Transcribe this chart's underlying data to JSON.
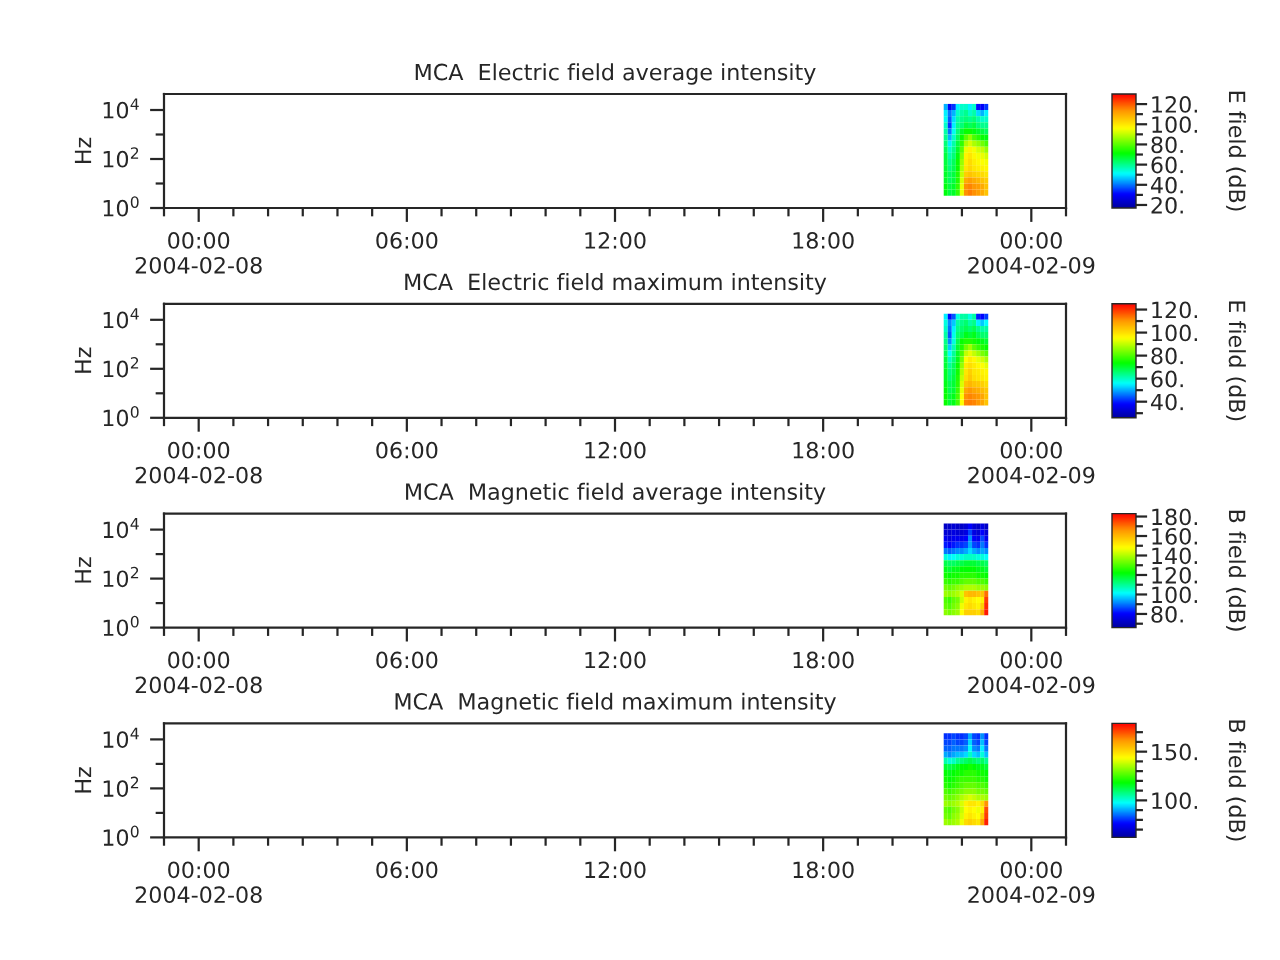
{
  "chart_data": [
    {
      "type": "heatmap",
      "title": "MCA  Electric field average intensity",
      "ylabel": "Hz",
      "clabel": "E field (dB)",
      "log": "y",
      "x": [
        "2004-02-08T21:32",
        "2004-02-08T21:39",
        "2004-02-08T21:46",
        "2004-02-08T21:53",
        "2004-02-08T22:00",
        "2004-02-08T22:07",
        "2004-02-08T22:14",
        "2004-02-08T22:21",
        "2004-02-08T22:28",
        "2004-02-08T22:35",
        "2004-02-08T22:42"
      ],
      "y": [
        13300,
        7500,
        4220,
        2370,
        1330,
        750,
        422,
        237,
        133,
        75,
        42.2,
        23.7,
        13.3,
        7.5,
        4.22
      ],
      "cells": [
        [
          45,
          30,
          35,
          50,
          55,
          55,
          50,
          55,
          32,
          30,
          35
        ],
        [
          50,
          40,
          45,
          55,
          58,
          60,
          55,
          58,
          48,
          45,
          50
        ],
        [
          52,
          38,
          48,
          58,
          60,
          62,
          60,
          62,
          58,
          55,
          55
        ],
        [
          55,
          35,
          50,
          60,
          62,
          66,
          64,
          66,
          62,
          60,
          60
        ],
        [
          58,
          40,
          52,
          62,
          68,
          72,
          72,
          70,
          68,
          66,
          64
        ],
        [
          60,
          45,
          55,
          64,
          72,
          80,
          85,
          78,
          75,
          72,
          70
        ],
        [
          62,
          50,
          58,
          66,
          76,
          88,
          92,
          88,
          85,
          82,
          78
        ],
        [
          64,
          55,
          60,
          68,
          80,
          94,
          98,
          95,
          92,
          90,
          86
        ],
        [
          66,
          58,
          62,
          70,
          84,
          98,
          100,
          97,
          95,
          94,
          92
        ],
        [
          66,
          60,
          64,
          72,
          86,
          99,
          102,
          99,
          97,
          96,
          95
        ],
        [
          67,
          62,
          65,
          72,
          88,
          100,
          103,
          100,
          99,
          98,
          97
        ],
        [
          68,
          64,
          66,
          74,
          90,
          104,
          106,
          104,
          103,
          102,
          100
        ],
        [
          68,
          64,
          66,
          74,
          92,
          110,
          112,
          110,
          108,
          106,
          104
        ],
        [
          70,
          66,
          68,
          76,
          94,
          114,
          115,
          113,
          112,
          110,
          106
        ],
        [
          70,
          66,
          68,
          76,
          94,
          114,
          116,
          114,
          112,
          110,
          106
        ]
      ],
      "clim": [
        17,
        130
      ],
      "cticks": [
        {
          "value": 20,
          "label": "20."
        },
        {
          "value": 30,
          "label": null
        },
        {
          "value": 40,
          "label": "40."
        },
        {
          "value": 50,
          "label": null
        },
        {
          "value": 60,
          "label": "60."
        },
        {
          "value": 70,
          "label": null
        },
        {
          "value": 80,
          "label": "80."
        },
        {
          "value": 90,
          "label": null
        },
        {
          "value": 100,
          "label": "100."
        },
        {
          "value": 110,
          "label": null
        },
        {
          "value": 120,
          "label": "120."
        }
      ],
      "xlim": [
        "2004-02-07T23:00",
        "2004-02-09T01:00"
      ],
      "xticks": [
        {
          "value": "2004-02-07T23:00",
          "label": null
        },
        {
          "value": "2004-02-08T00:00",
          "label": "00:00\n2004-02-08"
        },
        {
          "value": "2004-02-08T01:00",
          "label": null
        },
        {
          "value": "2004-02-08T02:00",
          "label": null
        },
        {
          "value": "2004-02-08T03:00",
          "label": null
        },
        {
          "value": "2004-02-08T04:00",
          "label": null
        },
        {
          "value": "2004-02-08T05:00",
          "label": null
        },
        {
          "value": "2004-02-08T06:00",
          "label": "06:00"
        },
        {
          "value": "2004-02-08T07:00",
          "label": null
        },
        {
          "value": "2004-02-08T08:00",
          "label": null
        },
        {
          "value": "2004-02-08T09:00",
          "label": null
        },
        {
          "value": "2004-02-08T10:00",
          "label": null
        },
        {
          "value": "2004-02-08T11:00",
          "label": null
        },
        {
          "value": "2004-02-08T12:00",
          "label": "12:00"
        },
        {
          "value": "2004-02-08T13:00",
          "label": null
        },
        {
          "value": "2004-02-08T14:00",
          "label": null
        },
        {
          "value": "2004-02-08T15:00",
          "label": null
        },
        {
          "value": "2004-02-08T16:00",
          "label": null
        },
        {
          "value": "2004-02-08T17:00",
          "label": null
        },
        {
          "value": "2004-02-08T18:00",
          "label": "18:00"
        },
        {
          "value": "2004-02-08T19:00",
          "label": null
        },
        {
          "value": "2004-02-08T20:00",
          "label": null
        },
        {
          "value": "2004-02-08T21:00",
          "label": null
        },
        {
          "value": "2004-02-08T22:00",
          "label": null
        },
        {
          "value": "2004-02-08T23:00",
          "label": null
        },
        {
          "value": "2004-02-09T00:00",
          "label": "00:00\n2004-02-09"
        },
        {
          "value": "2004-02-09T01:00",
          "label": null
        }
      ],
      "ylim": [
        1,
        45000
      ],
      "yticks": [
        {
          "value": 1,
          "label": "10$^{0}$"
        },
        {
          "value": 10,
          "label": null
        },
        {
          "value": 100,
          "label": "10$^{2}$"
        },
        {
          "value": 1000,
          "label": null
        },
        {
          "value": 10000,
          "label": "10$^{4}$"
        }
      ]
    },
    {
      "type": "heatmap",
      "title": "MCA  Electric field maximum intensity",
      "ylabel": "Hz",
      "clabel": "E field (dB)",
      "log": "y",
      "x": [
        "2004-02-08T21:32",
        "2004-02-08T21:39",
        "2004-02-08T21:46",
        "2004-02-08T21:53",
        "2004-02-08T22:00",
        "2004-02-08T22:07",
        "2004-02-08T22:14",
        "2004-02-08T22:21",
        "2004-02-08T22:28",
        "2004-02-08T22:35",
        "2004-02-08T22:42"
      ],
      "y": [
        13300,
        7500,
        4220,
        2370,
        1330,
        750,
        422,
        237,
        133,
        75,
        42.2,
        23.7,
        13.3,
        7.5,
        4.22
      ],
      "cells": [
        [
          55,
          38,
          44,
          58,
          62,
          62,
          58,
          62,
          40,
          38,
          42
        ],
        [
          58,
          48,
          52,
          62,
          64,
          66,
          62,
          64,
          55,
          52,
          56
        ],
        [
          60,
          46,
          55,
          64,
          66,
          68,
          66,
          68,
          64,
          62,
          62
        ],
        [
          62,
          44,
          57,
          66,
          68,
          72,
          70,
          72,
          68,
          66,
          66
        ],
        [
          64,
          48,
          58,
          68,
          74,
          76,
          76,
          75,
          73,
          72,
          70
        ],
        [
          66,
          52,
          61,
          70,
          76,
          83,
          87,
          81,
          78,
          76,
          74
        ],
        [
          67,
          56,
          63,
          71,
          80,
          90,
          93,
          90,
          87,
          84,
          81
        ],
        [
          69,
          60,
          65,
          72,
          83,
          95,
          98,
          96,
          93,
          91,
          88
        ],
        [
          70,
          63,
          67,
          74,
          86,
          98,
          100,
          98,
          96,
          95,
          93
        ],
        [
          71,
          65,
          68,
          75,
          88,
          99,
          102,
          99,
          98,
          97,
          96
        ],
        [
          71,
          66,
          69,
          76,
          90,
          100,
          103,
          100,
          99,
          98,
          97
        ],
        [
          72,
          68,
          70,
          77,
          92,
          104,
          106,
          104,
          103,
          102,
          100
        ],
        [
          73,
          68,
          70,
          78,
          93,
          108,
          110,
          108,
          107,
          105,
          103
        ],
        [
          74,
          70,
          72,
          79,
          95,
          111,
          112,
          111,
          110,
          108,
          104
        ],
        [
          74,
          70,
          72,
          79,
          95,
          112,
          113,
          112,
          110,
          108,
          104
        ]
      ],
      "clim": [
        26,
        125
      ],
      "cticks": [
        {
          "value": 30,
          "label": null
        },
        {
          "value": 40,
          "label": "40."
        },
        {
          "value": 50,
          "label": null
        },
        {
          "value": 60,
          "label": "60."
        },
        {
          "value": 70,
          "label": null
        },
        {
          "value": 80,
          "label": "80."
        },
        {
          "value": 90,
          "label": null
        },
        {
          "value": 100,
          "label": "100."
        },
        {
          "value": 110,
          "label": null
        },
        {
          "value": 120,
          "label": "120."
        }
      ],
      "xlim": [
        "2004-02-07T23:00",
        "2004-02-09T01:00"
      ],
      "xticks": [
        {
          "value": "2004-02-07T23:00",
          "label": null
        },
        {
          "value": "2004-02-08T00:00",
          "label": "00:00\n2004-02-08"
        },
        {
          "value": "2004-02-08T01:00",
          "label": null
        },
        {
          "value": "2004-02-08T02:00",
          "label": null
        },
        {
          "value": "2004-02-08T03:00",
          "label": null
        },
        {
          "value": "2004-02-08T04:00",
          "label": null
        },
        {
          "value": "2004-02-08T05:00",
          "label": null
        },
        {
          "value": "2004-02-08T06:00",
          "label": "06:00"
        },
        {
          "value": "2004-02-08T07:00",
          "label": null
        },
        {
          "value": "2004-02-08T08:00",
          "label": null
        },
        {
          "value": "2004-02-08T09:00",
          "label": null
        },
        {
          "value": "2004-02-08T10:00",
          "label": null
        },
        {
          "value": "2004-02-08T11:00",
          "label": null
        },
        {
          "value": "2004-02-08T12:00",
          "label": "12:00"
        },
        {
          "value": "2004-02-08T13:00",
          "label": null
        },
        {
          "value": "2004-02-08T14:00",
          "label": null
        },
        {
          "value": "2004-02-08T15:00",
          "label": null
        },
        {
          "value": "2004-02-08T16:00",
          "label": null
        },
        {
          "value": "2004-02-08T17:00",
          "label": null
        },
        {
          "value": "2004-02-08T18:00",
          "label": "18:00"
        },
        {
          "value": "2004-02-08T19:00",
          "label": null
        },
        {
          "value": "2004-02-08T20:00",
          "label": null
        },
        {
          "value": "2004-02-08T21:00",
          "label": null
        },
        {
          "value": "2004-02-08T22:00",
          "label": null
        },
        {
          "value": "2004-02-08T23:00",
          "label": null
        },
        {
          "value": "2004-02-09T00:00",
          "label": "00:00\n2004-02-09"
        },
        {
          "value": "2004-02-09T01:00",
          "label": null
        }
      ],
      "ylim": [
        1,
        45000
      ],
      "yticks": [
        {
          "value": 1,
          "label": "10$^{0}$"
        },
        {
          "value": 10,
          "label": null
        },
        {
          "value": 100,
          "label": "10$^{2}$"
        },
        {
          "value": 1000,
          "label": null
        },
        {
          "value": 10000,
          "label": "10$^{4}$"
        }
      ]
    },
    {
      "type": "heatmap",
      "title": "MCA  Magnetic field average intensity",
      "ylabel": "Hz",
      "clabel": "B field (dB)",
      "log": "y",
      "x": [
        "2004-02-08T21:32",
        "2004-02-08T21:39",
        "2004-02-08T21:46",
        "2004-02-08T21:53",
        "2004-02-08T22:00",
        "2004-02-08T22:07",
        "2004-02-08T22:14",
        "2004-02-08T22:21",
        "2004-02-08T22:28",
        "2004-02-08T22:35",
        "2004-02-08T22:42"
      ],
      "y": [
        13300,
        7500,
        4220,
        2370,
        1330,
        750,
        422,
        237,
        133,
        75,
        42.2,
        23.7,
        13.3,
        7.5,
        4.22
      ],
      "cells": [
        [
          72,
          72,
          74,
          72,
          72,
          74,
          80,
          74,
          72,
          76,
          72
        ],
        [
          74,
          74,
          76,
          74,
          74,
          76,
          86,
          76,
          74,
          80,
          74
        ],
        [
          78,
          76,
          78,
          78,
          78,
          80,
          92,
          80,
          78,
          86,
          78
        ],
        [
          82,
          80,
          82,
          84,
          84,
          86,
          94,
          86,
          84,
          90,
          84
        ],
        [
          90,
          88,
          90,
          92,
          92,
          94,
          98,
          94,
          92,
          94,
          92
        ],
        [
          104,
          100,
          102,
          104,
          104,
          106,
          106,
          106,
          104,
          104,
          102
        ],
        [
          116,
          114,
          114,
          116,
          116,
          118,
          118,
          118,
          116,
          116,
          114
        ],
        [
          120,
          118,
          120,
          120,
          122,
          122,
          122,
          122,
          120,
          120,
          118
        ],
        [
          124,
          122,
          124,
          124,
          126,
          126,
          126,
          126,
          124,
          124,
          122
        ],
        [
          128,
          126,
          128,
          128,
          130,
          132,
          132,
          132,
          130,
          130,
          128
        ],
        [
          134,
          132,
          134,
          136,
          138,
          140,
          140,
          140,
          138,
          138,
          136
        ],
        [
          138,
          136,
          138,
          140,
          144,
          158,
          160,
          160,
          158,
          158,
          170
        ],
        [
          130,
          128,
          132,
          134,
          142,
          150,
          152,
          150,
          148,
          150,
          176
        ],
        [
          132,
          130,
          134,
          136,
          146,
          152,
          154,
          152,
          150,
          156,
          178
        ],
        [
          136,
          134,
          136,
          138,
          148,
          156,
          156,
          156,
          154,
          162,
          180
        ]
      ],
      "clim": [
        66,
        183
      ],
      "cticks": [
        {
          "value": 70,
          "label": null
        },
        {
          "value": 80,
          "label": "80."
        },
        {
          "value": 90,
          "label": null
        },
        {
          "value": 100,
          "label": "100."
        },
        {
          "value": 110,
          "label": null
        },
        {
          "value": 120,
          "label": "120."
        },
        {
          "value": 130,
          "label": null
        },
        {
          "value": 140,
          "label": "140."
        },
        {
          "value": 150,
          "label": null
        },
        {
          "value": 160,
          "label": "160."
        },
        {
          "value": 170,
          "label": null
        },
        {
          "value": 180,
          "label": "180."
        }
      ],
      "xlim": [
        "2004-02-07T23:00",
        "2004-02-09T01:00"
      ],
      "xticks": [
        {
          "value": "2004-02-07T23:00",
          "label": null
        },
        {
          "value": "2004-02-08T00:00",
          "label": "00:00\n2004-02-08"
        },
        {
          "value": "2004-02-08T01:00",
          "label": null
        },
        {
          "value": "2004-02-08T02:00",
          "label": null
        },
        {
          "value": "2004-02-08T03:00",
          "label": null
        },
        {
          "value": "2004-02-08T04:00",
          "label": null
        },
        {
          "value": "2004-02-08T05:00",
          "label": null
        },
        {
          "value": "2004-02-08T06:00",
          "label": "06:00"
        },
        {
          "value": "2004-02-08T07:00",
          "label": null
        },
        {
          "value": "2004-02-08T08:00",
          "label": null
        },
        {
          "value": "2004-02-08T09:00",
          "label": null
        },
        {
          "value": "2004-02-08T10:00",
          "label": null
        },
        {
          "value": "2004-02-08T11:00",
          "label": null
        },
        {
          "value": "2004-02-08T12:00",
          "label": "12:00"
        },
        {
          "value": "2004-02-08T13:00",
          "label": null
        },
        {
          "value": "2004-02-08T14:00",
          "label": null
        },
        {
          "value": "2004-02-08T15:00",
          "label": null
        },
        {
          "value": "2004-02-08T16:00",
          "label": null
        },
        {
          "value": "2004-02-08T17:00",
          "label": null
        },
        {
          "value": "2004-02-08T18:00",
          "label": "18:00"
        },
        {
          "value": "2004-02-08T19:00",
          "label": null
        },
        {
          "value": "2004-02-08T20:00",
          "label": null
        },
        {
          "value": "2004-02-08T21:00",
          "label": null
        },
        {
          "value": "2004-02-08T22:00",
          "label": null
        },
        {
          "value": "2004-02-08T23:00",
          "label": null
        },
        {
          "value": "2004-02-09T00:00",
          "label": "00:00\n2004-02-09"
        },
        {
          "value": "2004-02-09T01:00",
          "label": null
        }
      ],
      "ylim": [
        1,
        45000
      ],
      "yticks": [
        {
          "value": 1,
          "label": "10$^{0}$"
        },
        {
          "value": 10,
          "label": null
        },
        {
          "value": 100,
          "label": "10$^{2}$"
        },
        {
          "value": 1000,
          "label": null
        },
        {
          "value": 10000,
          "label": "10$^{4}$"
        }
      ]
    },
    {
      "type": "heatmap",
      "title": "MCA  Magnetic field maximum intensity",
      "ylabel": "Hz",
      "clabel": "B field (dB)",
      "log": "y",
      "x": [
        "2004-02-08T21:32",
        "2004-02-08T21:39",
        "2004-02-08T21:46",
        "2004-02-08T21:53",
        "2004-02-08T22:00",
        "2004-02-08T22:07",
        "2004-02-08T22:14",
        "2004-02-08T22:21",
        "2004-02-08T22:28",
        "2004-02-08T22:35",
        "2004-02-08T22:42"
      ],
      "y": [
        13300,
        7500,
        4220,
        2370,
        1330,
        750,
        422,
        237,
        133,
        75,
        42.2,
        23.7,
        13.3,
        7.5,
        4.22
      ],
      "cells": [
        [
          80,
          80,
          82,
          80,
          80,
          82,
          90,
          82,
          80,
          88,
          80
        ],
        [
          82,
          82,
          84,
          82,
          82,
          84,
          94,
          84,
          82,
          92,
          82
        ],
        [
          84,
          84,
          86,
          86,
          86,
          88,
          98,
          88,
          86,
          96,
          86
        ],
        [
          90,
          88,
          90,
          92,
          92,
          94,
          102,
          94,
          92,
          100,
          92
        ],
        [
          104,
          100,
          102,
          106,
          108,
          110,
          112,
          110,
          108,
          110,
          106
        ],
        [
          114,
          112,
          114,
          116,
          118,
          118,
          120,
          118,
          116,
          116,
          114
        ],
        [
          118,
          116,
          118,
          120,
          120,
          122,
          122,
          122,
          120,
          120,
          118
        ],
        [
          120,
          118,
          120,
          122,
          124,
          124,
          124,
          124,
          122,
          122,
          120
        ],
        [
          122,
          120,
          122,
          124,
          126,
          128,
          128,
          128,
          126,
          126,
          124
        ],
        [
          126,
          124,
          126,
          128,
          130,
          132,
          132,
          132,
          130,
          130,
          128
        ],
        [
          130,
          128,
          130,
          132,
          136,
          138,
          140,
          138,
          136,
          136,
          134
        ],
        [
          134,
          132,
          134,
          136,
          140,
          146,
          148,
          148,
          146,
          150,
          162
        ],
        [
          128,
          126,
          130,
          132,
          138,
          144,
          146,
          144,
          142,
          146,
          170
        ],
        [
          130,
          128,
          132,
          134,
          140,
          146,
          148,
          146,
          144,
          152,
          172
        ],
        [
          134,
          132,
          134,
          136,
          142,
          150,
          152,
          150,
          148,
          158,
          175
        ]
      ],
      "clim": [
        62,
        179
      ],
      "cticks": [
        {
          "value": 70,
          "label": null
        },
        {
          "value": 80,
          "label": null
        },
        {
          "value": 90,
          "label": null
        },
        {
          "value": 100,
          "label": "100."
        },
        {
          "value": 110,
          "label": null
        },
        {
          "value": 120,
          "label": null
        },
        {
          "value": 130,
          "label": null
        },
        {
          "value": 140,
          "label": null
        },
        {
          "value": 150,
          "label": "150."
        },
        {
          "value": 160,
          "label": null
        },
        {
          "value": 170,
          "label": null
        }
      ],
      "xlim": [
        "2004-02-07T23:00",
        "2004-02-09T01:00"
      ],
      "xticks": [
        {
          "value": "2004-02-07T23:00",
          "label": null
        },
        {
          "value": "2004-02-08T00:00",
          "label": "00:00\n2004-02-08"
        },
        {
          "value": "2004-02-08T01:00",
          "label": null
        },
        {
          "value": "2004-02-08T02:00",
          "label": null
        },
        {
          "value": "2004-02-08T03:00",
          "label": null
        },
        {
          "value": "2004-02-08T04:00",
          "label": null
        },
        {
          "value": "2004-02-08T05:00",
          "label": null
        },
        {
          "value": "2004-02-08T06:00",
          "label": "06:00"
        },
        {
          "value": "2004-02-08T07:00",
          "label": null
        },
        {
          "value": "2004-02-08T08:00",
          "label": null
        },
        {
          "value": "2004-02-08T09:00",
          "label": null
        },
        {
          "value": "2004-02-08T10:00",
          "label": null
        },
        {
          "value": "2004-02-08T11:00",
          "label": null
        },
        {
          "value": "2004-02-08T12:00",
          "label": "12:00"
        },
        {
          "value": "2004-02-08T13:00",
          "label": null
        },
        {
          "value": "2004-02-08T14:00",
          "label": null
        },
        {
          "value": "2004-02-08T15:00",
          "label": null
        },
        {
          "value": "2004-02-08T16:00",
          "label": null
        },
        {
          "value": "2004-02-08T17:00",
          "label": null
        },
        {
          "value": "2004-02-08T18:00",
          "label": "18:00"
        },
        {
          "value": "2004-02-08T19:00",
          "label": null
        },
        {
          "value": "2004-02-08T20:00",
          "label": null
        },
        {
          "value": "2004-02-08T21:00",
          "label": null
        },
        {
          "value": "2004-02-08T22:00",
          "label": null
        },
        {
          "value": "2004-02-08T23:00",
          "label": null
        },
        {
          "value": "2004-02-09T00:00",
          "label": "00:00\n2004-02-09"
        },
        {
          "value": "2004-02-09T01:00",
          "label": null
        }
      ],
      "ylim": [
        1,
        45000
      ],
      "yticks": [
        {
          "value": 1,
          "label": "10$^{0}$"
        },
        {
          "value": 10,
          "label": null
        },
        {
          "value": 100,
          "label": "10$^{2}$"
        },
        {
          "value": 1000,
          "label": null
        },
        {
          "value": 10000,
          "label": "10$^{4}$"
        }
      ]
    }
  ]
}
